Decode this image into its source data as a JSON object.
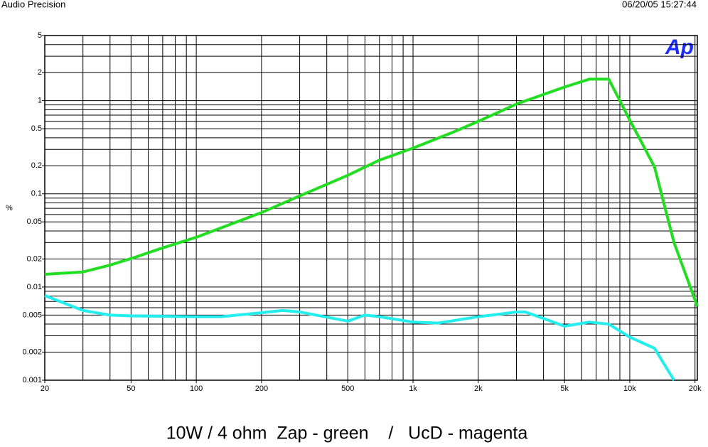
{
  "header": {
    "left": "Audio Precision",
    "right": "06/20/05 15:27:44"
  },
  "chart_data": {
    "type": "line",
    "logo": "Ap",
    "ylabel": "%",
    "caption": "10W / 4 ohm  Zap - green    /   UcD - magenta",
    "xlog": true,
    "ylog": true,
    "grid": true,
    "xlim": [
      20,
      20500
    ],
    "ylim": [
      0.001,
      5
    ],
    "xticks": [
      20,
      50,
      100,
      200,
      500,
      {
        "value": 1000,
        "label": "1k"
      },
      {
        "value": 2000,
        "label": "2k"
      },
      {
        "value": 5000,
        "label": "5k"
      },
      {
        "value": 10000,
        "label": "10k"
      },
      {
        "value": 20000,
        "label": "20k"
      }
    ],
    "yticks": [
      0.001,
      0.002,
      0.005,
      0.01,
      0.02,
      0.05,
      0.1,
      0.2,
      0.5,
      1,
      2,
      5
    ],
    "x_gridlines": [
      20,
      30,
      40,
      50,
      60,
      70,
      80,
      90,
      100,
      200,
      300,
      400,
      500,
      600,
      700,
      800,
      900,
      1000,
      2000,
      3000,
      4000,
      5000,
      6000,
      7000,
      8000,
      9000,
      10000,
      20000
    ],
    "y_gridlines": [
      0.001,
      0.002,
      0.003,
      0.004,
      0.005,
      0.006,
      0.007,
      0.008,
      0.009,
      0.01,
      0.02,
      0.03,
      0.04,
      0.05,
      0.06,
      0.07,
      0.08,
      0.09,
      0.1,
      0.2,
      0.3,
      0.4,
      0.5,
      0.6,
      0.7,
      0.8,
      0.9,
      1,
      2,
      3,
      4,
      5
    ],
    "series": [
      {
        "color": "#22dd22",
        "x": [
          20,
          30,
          40,
          50,
          70,
          100,
          200,
          300,
          500,
          700,
          1000,
          1500,
          2000,
          3000,
          5000,
          6500,
          8000,
          10000,
          13000,
          16000,
          20500
        ],
        "values": [
          0.0137,
          0.0145,
          0.0172,
          0.0202,
          0.0263,
          0.0342,
          0.063,
          0.095,
          0.158,
          0.23,
          0.31,
          0.45,
          0.6,
          0.92,
          1.4,
          1.7,
          1.7,
          0.62,
          0.195,
          0.03,
          0.0062
        ]
      },
      {
        "color": "#22eeee",
        "x": [
          20,
          30,
          40,
          50,
          100,
          130,
          200,
          250,
          300,
          500,
          600,
          700,
          1000,
          1300,
          2000,
          3000,
          3300,
          5000,
          6500,
          8000,
          10000,
          13000,
          16000
        ],
        "values": [
          0.0081,
          0.0056,
          0.005,
          0.0049,
          0.0048,
          0.0048,
          0.0053,
          0.0056,
          0.0054,
          0.0043,
          0.005,
          0.0048,
          0.0042,
          0.0041,
          0.0048,
          0.0054,
          0.0054,
          0.0038,
          0.0042,
          0.004,
          0.0029,
          0.0022,
          0.001
        ]
      }
    ]
  }
}
